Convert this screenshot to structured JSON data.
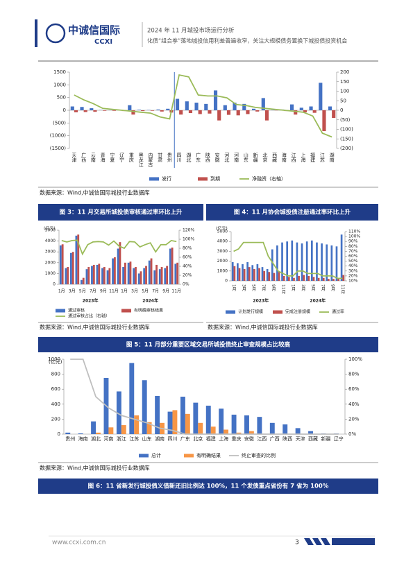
{
  "header": {
    "logo": "中诚信国际",
    "logo_en": "CCXI",
    "title": "2024 年 11 月城投市场运行分析",
    "subtitle": "化债“组合拳”落地城投信用利差普遍收窄，关注大规模债务置换下城投债投资机会"
  },
  "chart_data": [
    {
      "type": "combo",
      "source": "数据来源：Wind,中诚信国际城投行业数据库",
      "categories": [
        "天津",
        "广西",
        "云南",
        "青海",
        "宁夏",
        "辽宁",
        "重庆",
        "黑龙江",
        "内蒙古",
        "甘肃",
        "贵州",
        "四川",
        "湖北",
        "广东",
        "陕西",
        "安徽",
        "河北",
        "河南",
        "山东",
        "新疆",
        "北京",
        "西藏",
        "海南",
        "江西",
        "上海",
        "福建",
        "江苏",
        "湖南"
      ],
      "series": [
        {
          "name": "发行",
          "kind": "bar",
          "color": "#4472c4",
          "values": [
            150,
            130,
            80,
            10,
            5,
            10,
            200,
            20,
            10,
            30,
            60,
            450,
            350,
            300,
            250,
            780,
            200,
            300,
            250,
            60,
            480,
            10,
            30,
            230,
            100,
            150,
            1080,
            150
          ]
        },
        {
          "name": "到期",
          "kind": "bar",
          "color": "#c0504d",
          "values": [
            -80,
            -70,
            -60,
            -20,
            -20,
            -30,
            -170,
            -30,
            -20,
            -50,
            -90,
            -170,
            -110,
            -150,
            -130,
            -400,
            -180,
            -200,
            -150,
            -50,
            -400,
            -5,
            -30,
            -170,
            -80,
            -100,
            -820,
            -300
          ]
        },
        {
          "name": "净融资（右轴）",
          "kind": "line",
          "axis": "y2",
          "color": "#9bbb59",
          "values": [
            80,
            55,
            35,
            10,
            5,
            0,
            -5,
            -10,
            -15,
            -35,
            -45,
            185,
            175,
            80,
            75,
            75,
            65,
            30,
            25,
            15,
            10,
            5,
            0,
            -5,
            -10,
            -30,
            -120,
            -140
          ]
        }
      ],
      "ylim": [
        -1500,
        1500
      ],
      "yticks": [
        1500,
        1000,
        500,
        0,
        {
          "value": -500,
          "label": "(500)"
        },
        {
          "value": -1000,
          "label": "(1000)"
        },
        {
          "value": -1500,
          "label": "(1500)"
        }
      ],
      "y2lim": [
        -200,
        200
      ],
      "y2ticks": [
        200,
        150,
        100,
        50,
        0,
        {
          "value": -50,
          "label": "(50)"
        },
        {
          "value": -100,
          "label": "(100)"
        },
        {
          "value": -150,
          "label": "(150)"
        },
        {
          "value": -200,
          "label": "(200)"
        }
      ]
    },
    {
      "type": "combo",
      "title": "图 3：11 月交易所城投债审核通过率环比上升",
      "source": "数据来源：Wind,中诚信国际城投行业数据库",
      "y_label": "(亿元)",
      "categories": [
        "1月",
        null,
        "3月",
        null,
        "5月",
        null,
        "7月",
        null,
        "9月",
        null,
        "11月",
        null,
        "1月",
        null,
        "3月",
        null,
        "5月",
        null,
        "7月",
        null,
        "9月",
        null,
        "11月"
      ],
      "x_groups": [
        "2023年",
        "2024年"
      ],
      "series": [
        {
          "name": "通过审核",
          "kind": "bar",
          "color": "#4472c4",
          "values": [
            3600,
            1500,
            2900,
            4500,
            400,
            1400,
            1700,
            1800,
            1500,
            1300,
            2400,
            3300,
            1600,
            2000,
            1500,
            1000,
            1500,
            2200,
            1300,
            1400,
            1500,
            3300,
            1900
          ]
        },
        {
          "name": "有明确审核结果",
          "kind": "bar",
          "color": "#c0504d",
          "values": [
            3700,
            1600,
            3000,
            4600,
            600,
            1600,
            1800,
            1900,
            1600,
            1500,
            2500,
            3900,
            2000,
            2100,
            1600,
            1200,
            1700,
            2400,
            1800,
            1600,
            1700,
            3400,
            2000
          ]
        },
        {
          "name": "通过审核占比（右轴）",
          "kind": "line",
          "axis": "y2",
          "color": "#9bbb59",
          "values": [
            97,
            94,
            97,
            98,
            67,
            88,
            94,
            95,
            94,
            87,
            96,
            85,
            80,
            95,
            94,
            83,
            88,
            92,
            72,
            88,
            88,
            97,
            95
          ]
        }
      ],
      "ylim": [
        0,
        5000
      ],
      "yticks": [
        0,
        1000,
        2000,
        3000,
        4000,
        5000
      ],
      "y2lim": [
        0,
        120
      ],
      "y2ticks": [
        {
          "value": 0,
          "label": "0%"
        },
        {
          "value": 20,
          "label": "20%"
        },
        {
          "value": 40,
          "label": "40%"
        },
        {
          "value": 60,
          "label": "60%"
        },
        {
          "value": 80,
          "label": "80%"
        },
        {
          "value": 100,
          "label": "100%"
        },
        {
          "value": 120,
          "label": "120%"
        }
      ]
    },
    {
      "type": "combo",
      "title": "图 4：11 月协会城投债注册通过率环比上升",
      "source": "数据来源：Wind,中诚信国际城投行业数据库",
      "y_label": "(亿元)",
      "categories": [
        "1月",
        null,
        "3月",
        null,
        "5月",
        null,
        "7月",
        null,
        "9月",
        null,
        "11月",
        null,
        "1月",
        null,
        "3月",
        null,
        "5月",
        null,
        "7月",
        null,
        "9月",
        null,
        "11月"
      ],
      "x_groups": [
        "2023年",
        "2024年"
      ],
      "series": [
        {
          "name": "计划发行规模",
          "kind": "bar",
          "color": "#4472c4",
          "values": [
            1900,
            1800,
            1700,
            1900,
            1600,
            1700,
            1400,
            1200,
            3200,
            3600,
            3900,
            4000,
            4100,
            3900,
            3800,
            4000,
            4100,
            3900,
            3800,
            3700,
            3600,
            3500,
            4700
          ]
        },
        {
          "name": "完成注册规模",
          "kind": "bar",
          "color": "#c0504d",
          "values": [
            1500,
            1300,
            1200,
            1400,
            1200,
            1300,
            1000,
            900,
            800,
            900,
            500,
            400,
            300,
            500,
            600,
            500,
            400,
            300,
            300,
            200,
            200,
            300,
            600
          ]
        },
        {
          "name": "通过率",
          "kind": "line",
          "axis": "y2",
          "color": "#9bbb59",
          "values": [
            70,
            75,
            88,
            88,
            88,
            88,
            88,
            60,
            45,
            30,
            25,
            20,
            20,
            30,
            30,
            25,
            25,
            25,
            20,
            20,
            20,
            15,
            15
          ]
        }
      ],
      "ylim": [
        0,
        5000
      ],
      "yticks": [
        0,
        1000,
        2000,
        3000,
        4000,
        5000
      ],
      "y2lim": [
        10,
        110
      ],
      "y2ticks": [
        {
          "value": 10,
          "label": "10%"
        },
        {
          "value": 20,
          "label": "20%"
        },
        {
          "value": 30,
          "label": "30%"
        },
        {
          "value": 40,
          "label": "40%"
        },
        {
          "value": 50,
          "label": "50%"
        },
        {
          "value": 60,
          "label": "60%"
        },
        {
          "value": 70,
          "label": "70%"
        },
        {
          "value": 80,
          "label": "80%"
        },
        {
          "value": 90,
          "label": "90%"
        },
        {
          "value": 100,
          "label": "100%"
        },
        {
          "value": 110,
          "label": "110%"
        }
      ]
    },
    {
      "type": "combo",
      "title": "图 5：11 月部分重要区域交易所城投债终止审查规模占比较高",
      "source": "数据来源：Wind,中诚信国际城投行业数据库",
      "y_label": "(亿元)",
      "categories": [
        "贵州",
        "海南",
        "湖北",
        "河南",
        "浙江",
        "江苏",
        "山东",
        "湖南",
        "四川",
        "广东",
        "北京",
        "福建",
        "上海",
        "重庆",
        "安徽",
        "江西",
        "广西",
        "陕西",
        "天津",
        "西藏",
        "新疆",
        "辽宁"
      ],
      "series": [
        {
          "name": "总计",
          "kind": "bar",
          "color": "#4472c4",
          "values": [
            20,
            10,
            170,
            750,
            570,
            950,
            720,
            510,
            300,
            500,
            420,
            380,
            340,
            260,
            250,
            230,
            150,
            130,
            80,
            40,
            10,
            10
          ]
        },
        {
          "name": "有明确结果",
          "kind": "bar",
          "color": "#f79646",
          "values": [
            0,
            0,
            20,
            90,
            120,
            250,
            160,
            150,
            320,
            270,
            150,
            100,
            60,
            20,
            40,
            0,
            0,
            0,
            0,
            0,
            0,
            0
          ]
        },
        {
          "name": "终止审查的比例",
          "kind": "line",
          "axis": "y2",
          "color": "#bfbfbf",
          "values": [
            100,
            100,
            50,
            35,
            25,
            20,
            15,
            8,
            5,
            0,
            0,
            0,
            0,
            0,
            0,
            0,
            0,
            0,
            0,
            0,
            0,
            0
          ]
        }
      ],
      "ylim": [
        0,
        1000
      ],
      "yticks": [
        0,
        200,
        400,
        600,
        800,
        1000
      ],
      "y2lim": [
        0,
        100
      ],
      "y2ticks": [
        {
          "value": 0,
          "label": "0%"
        },
        {
          "value": 20,
          "label": "20%"
        },
        {
          "value": 40,
          "label": "40%"
        },
        {
          "value": 60,
          "label": "60%"
        },
        {
          "value": 80,
          "label": "80%"
        },
        {
          "value": 100,
          "label": "100%"
        }
      ]
    }
  ],
  "figure_6": {
    "title": "图 6：11 省新发行城投债义借新还旧比例达 100%，11 个发债重点省份有 7 省为 100%"
  },
  "footer": {
    "url": "www.ccxi.com.cn",
    "page": "3"
  }
}
